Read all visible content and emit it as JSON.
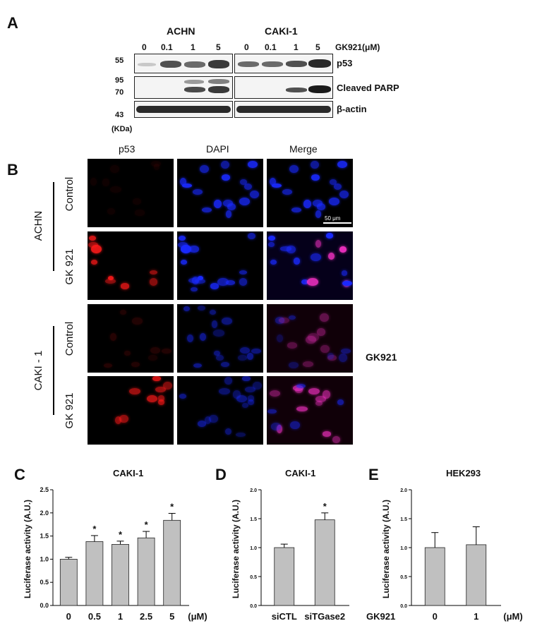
{
  "panel_a": {
    "letter": "A",
    "cell_lines": [
      "ACHN",
      "CAKI-1"
    ],
    "doses": [
      "0",
      "0.1",
      "1",
      "5"
    ],
    "treatment_label": "GK921(μM)",
    "bands": [
      "p53",
      "Cleaved PARP",
      "β-actin"
    ],
    "markers": [
      "55",
      "95",
      "70",
      "43"
    ],
    "kda_label": "(KDa)"
  },
  "panel_b": {
    "letter": "B",
    "columns": [
      "p53",
      "DAPI",
      "Merge"
    ],
    "groups": [
      "ACHN",
      "CAKI - 1"
    ],
    "rows": [
      "Control",
      "GK 921",
      "Control",
      "GK 921"
    ],
    "scale_bar": "50 μm",
    "side_label": "GK921"
  },
  "panel_c": {
    "letter": "C",
    "title": "CAKI-1",
    "unit": "(μM)"
  },
  "panel_d": {
    "letter": "D",
    "title": "CAKI-1"
  },
  "panel_e": {
    "letter": "E",
    "title": "HEK293",
    "xlabel_prefix": "GK921",
    "unit": "(μM)"
  },
  "colors": {
    "bar_fill": "#c0c0c0",
    "p53_stain": "#ff1a1a",
    "dapi_stain": "#1a2aff",
    "merge_stain": "#ff33cc"
  },
  "chart_data": [
    {
      "type": "bar",
      "title": "CAKI-1",
      "ylabel": "Luciferase activity (A.U.)",
      "xlabel": "(μM)",
      "categories": [
        "0",
        "0.5",
        "1",
        "2.5",
        "5"
      ],
      "values": [
        1.0,
        1.38,
        1.32,
        1.46,
        1.84
      ],
      "errors": [
        0.04,
        0.13,
        0.07,
        0.14,
        0.15
      ],
      "significance": [
        "",
        "*",
        "*",
        "*",
        "*"
      ],
      "ylim": [
        0,
        2.5
      ],
      "yticks": [
        "0.0",
        "0.5",
        "1.0",
        "1.5",
        "2.0",
        "2.5"
      ]
    },
    {
      "type": "bar",
      "title": "CAKI-1",
      "ylabel": "Luciferase activity (A.U.)",
      "categories": [
        "siCTL",
        "siTGase2"
      ],
      "values": [
        1.0,
        1.48
      ],
      "errors": [
        0.06,
        0.12
      ],
      "significance": [
        "",
        "*"
      ],
      "ylim": [
        0,
        2.0
      ],
      "yticks": [
        "0.0",
        "0.5",
        "1.0",
        "1.5",
        "2.0"
      ]
    },
    {
      "type": "bar",
      "title": "HEK293",
      "ylabel": "Luciferase activity (A.U.)",
      "xlabel": "GK921 (μM)",
      "categories": [
        "0",
        "1"
      ],
      "values": [
        1.0,
        1.05
      ],
      "errors": [
        0.26,
        0.31
      ],
      "significance": [
        "",
        ""
      ],
      "ylim": [
        0,
        2.0
      ],
      "yticks": [
        "0.0",
        "0.5",
        "1.0",
        "1.5",
        "2.0"
      ]
    }
  ]
}
